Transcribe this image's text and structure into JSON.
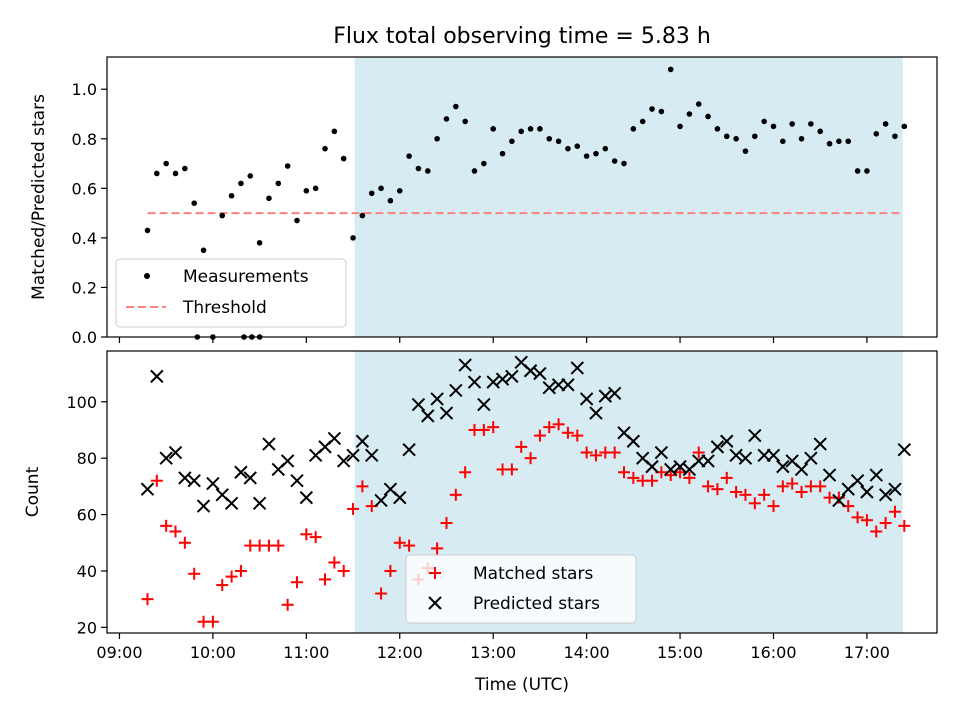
{
  "chart_data": [
    {
      "type": "scatter",
      "title": "Flux total observing time = 5.83 h",
      "ylabel": "Matched/Predicted stars",
      "ylim": [
        0,
        1.13
      ],
      "yticks": [
        0.0,
        0.2,
        0.4,
        0.6,
        0.8,
        1.0
      ],
      "ytick_labels": [
        "0.0",
        "0.2",
        "0.4",
        "0.6",
        "0.8",
        "1.0"
      ],
      "shaded_span": {
        "start": "11:31",
        "end": "17:23",
        "color": "#add8e6"
      },
      "threshold": {
        "name": "Threshold",
        "value": 0.5,
        "start": "09:18",
        "end": "17:23",
        "color": "#ff8080",
        "style": "dashed"
      },
      "series": [
        {
          "name": "Measurements",
          "marker": "dot",
          "color": "#000000",
          "x": [
            "09:18",
            "09:24",
            "09:30",
            "09:36",
            "09:42",
            "09:48",
            "09:54",
            "10:00",
            "10:06",
            "10:12",
            "10:18",
            "10:24",
            "10:30",
            "10:36",
            "10:42",
            "10:48",
            "10:54",
            "11:00",
            "11:06",
            "11:12",
            "11:18",
            "11:24",
            "11:30",
            "11:36",
            "11:42",
            "11:48",
            "11:54",
            "12:00",
            "12:06",
            "12:12",
            "12:18",
            "12:24",
            "12:30",
            "12:36",
            "12:42",
            "12:48",
            "12:54",
            "13:00",
            "13:06",
            "13:12",
            "13:18",
            "13:24",
            "13:30",
            "13:36",
            "13:42",
            "13:48",
            "13:54",
            "14:00",
            "14:06",
            "14:12",
            "14:18",
            "14:24",
            "14:30",
            "14:36",
            "14:42",
            "14:48",
            "14:54",
            "15:00",
            "15:06",
            "15:12",
            "15:18",
            "15:24",
            "15:30",
            "15:36",
            "15:42",
            "15:48",
            "15:54",
            "16:00",
            "16:06",
            "16:12",
            "16:18",
            "16:24",
            "16:30",
            "16:36",
            "16:42",
            "16:48",
            "16:54",
            "17:00",
            "17:06",
            "17:12",
            "17:18",
            "17:24"
          ],
          "y": [
            0.43,
            0.66,
            0.7,
            0.66,
            0.68,
            0.54,
            0.35,
            0.0,
            0.49,
            0.57,
            0.62,
            0.65,
            0.38,
            0.56,
            0.62,
            0.69,
            0.47,
            0.59,
            0.6,
            0.76,
            0.83,
            0.72,
            0.4,
            0.49,
            0.58,
            0.6,
            0.55,
            0.59,
            0.73,
            0.68,
            0.67,
            0.8,
            0.88,
            0.93,
            0.87,
            0.67,
            0.7,
            0.84,
            0.74,
            0.79,
            0.83,
            0.84,
            0.84,
            0.8,
            0.79,
            0.76,
            0.77,
            0.73,
            0.74,
            0.76,
            0.71,
            0.7,
            0.84,
            0.87,
            0.92,
            0.91,
            1.08,
            0.85,
            0.9,
            0.94,
            0.89,
            0.84,
            0.81,
            0.8,
            0.75,
            0.81,
            0.87,
            0.85,
            0.79,
            0.86,
            0.8,
            0.86,
            0.83,
            0.78,
            0.79,
            0.79,
            0.67,
            0.67,
            0.82,
            0.86,
            0.81,
            0.85
          ]
        },
        {
          "name": "Measurements",
          "marker": "dot",
          "color": "#000000",
          "x": [
            "09:50",
            "10:20",
            "10:25",
            "10:30"
          ],
          "y": [
            0.0,
            0.0,
            0.0,
            0.0
          ]
        }
      ],
      "legend": {
        "position": "lower-left"
      }
    },
    {
      "type": "scatter",
      "xlabel": "Time (UTC)",
      "ylabel": "Count",
      "xlim": [
        "08:52",
        "17:45"
      ],
      "ylim": [
        18,
        118
      ],
      "xticks": [
        "09:00",
        "10:00",
        "11:00",
        "12:00",
        "13:00",
        "14:00",
        "15:00",
        "16:00",
        "17:00"
      ],
      "yticks": [
        20,
        40,
        60,
        80,
        100
      ],
      "ytick_labels": [
        "20",
        "40",
        "60",
        "80",
        "100"
      ],
      "shaded_span": {
        "start": "11:31",
        "end": "17:23",
        "color": "#add8e6"
      },
      "series": [
        {
          "name": "Matched stars",
          "marker": "plus",
          "color": "#ff0000",
          "x": [
            "09:18",
            "09:24",
            "09:30",
            "09:36",
            "09:42",
            "09:48",
            "09:54",
            "10:00",
            "10:06",
            "10:12",
            "10:18",
            "10:24",
            "10:30",
            "10:36",
            "10:42",
            "10:48",
            "10:54",
            "11:00",
            "11:06",
            "11:12",
            "11:18",
            "11:24",
            "11:30",
            "11:36",
            "11:42",
            "11:48",
            "11:54",
            "12:00",
            "12:06",
            "12:12",
            "12:18",
            "12:24",
            "12:30",
            "12:36",
            "12:42",
            "12:48",
            "12:54",
            "13:00",
            "13:06",
            "13:12",
            "13:18",
            "13:24",
            "13:30",
            "13:36",
            "13:42",
            "13:48",
            "13:54",
            "14:00",
            "14:06",
            "14:12",
            "14:18",
            "14:24",
            "14:30",
            "14:36",
            "14:42",
            "14:48",
            "14:54",
            "15:00",
            "15:06",
            "15:12",
            "15:18",
            "15:24",
            "15:30",
            "15:36",
            "15:42",
            "15:48",
            "15:54",
            "16:00",
            "16:06",
            "16:12",
            "16:18",
            "16:24",
            "16:30",
            "16:36",
            "16:42",
            "16:48",
            "16:54",
            "17:00",
            "17:06",
            "17:12",
            "17:18",
            "17:24"
          ],
          "y": [
            30,
            72,
            56,
            54,
            50,
            39,
            22,
            22,
            35,
            38,
            40,
            49,
            49,
            49,
            49,
            28,
            36,
            53,
            52,
            37,
            43,
            40,
            62,
            70,
            63,
            32,
            40,
            50,
            49,
            37,
            41,
            48,
            57,
            67,
            75,
            90,
            90,
            91,
            76,
            76,
            84,
            80,
            88,
            91,
            92,
            89,
            88,
            82,
            81,
            82,
            82,
            75,
            73,
            72,
            72,
            75,
            74,
            75,
            73,
            82,
            70,
            69,
            73,
            68,
            67,
            64,
            67,
            63,
            70,
            71,
            68,
            70,
            70,
            66,
            66,
            63,
            59,
            58,
            54,
            57,
            61,
            56
          ]
        },
        {
          "name": "Predicted stars",
          "marker": "cross",
          "color": "#000000",
          "x": [
            "09:18",
            "09:24",
            "09:30",
            "09:36",
            "09:42",
            "09:48",
            "09:54",
            "10:00",
            "10:06",
            "10:12",
            "10:18",
            "10:24",
            "10:30",
            "10:36",
            "10:42",
            "10:48",
            "10:54",
            "11:00",
            "11:06",
            "11:12",
            "11:18",
            "11:24",
            "11:30",
            "11:36",
            "11:42",
            "11:48",
            "11:54",
            "12:00",
            "12:06",
            "12:12",
            "12:18",
            "12:24",
            "12:30",
            "12:36",
            "12:42",
            "12:48",
            "12:54",
            "13:00",
            "13:06",
            "13:12",
            "13:18",
            "13:24",
            "13:30",
            "13:36",
            "13:42",
            "13:48",
            "13:54",
            "14:00",
            "14:06",
            "14:12",
            "14:18",
            "14:24",
            "14:30",
            "14:36",
            "14:42",
            "14:48",
            "14:54",
            "15:00",
            "15:06",
            "15:12",
            "15:18",
            "15:24",
            "15:30",
            "15:36",
            "15:42",
            "15:48",
            "15:54",
            "16:00",
            "16:06",
            "16:12",
            "16:18",
            "16:24",
            "16:30",
            "16:36",
            "16:42",
            "16:48",
            "16:54",
            "17:00",
            "17:06",
            "17:12",
            "17:18",
            "17:24"
          ],
          "y": [
            69,
            109,
            80,
            82,
            73,
            72,
            63,
            71,
            67,
            64,
            75,
            73,
            64,
            85,
            76,
            79,
            72,
            66,
            81,
            84,
            87,
            79,
            81,
            86,
            81,
            65,
            69,
            66,
            83,
            99,
            95,
            101,
            96,
            104,
            113,
            107,
            99,
            107,
            108,
            109,
            114,
            111,
            110,
            105,
            106,
            106,
            112,
            101,
            96,
            102,
            103,
            89,
            86,
            80,
            77,
            82,
            76,
            77,
            76,
            79,
            79,
            84,
            86,
            81,
            80,
            88,
            81,
            81,
            77,
            79,
            76,
            80,
            85,
            74,
            65,
            69,
            72,
            68,
            74,
            67,
            69,
            83
          ]
        }
      ],
      "legend": {
        "position": "lower-center"
      }
    }
  ]
}
